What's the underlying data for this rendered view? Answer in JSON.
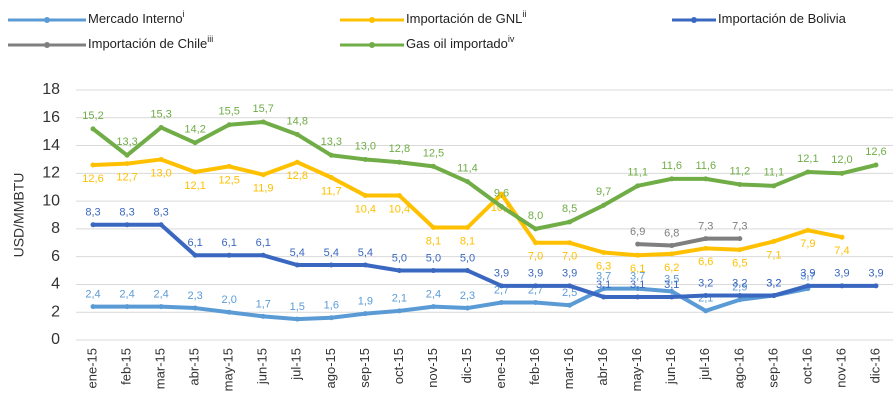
{
  "chart_data": {
    "type": "line",
    "y_label": "USD/MMBTU",
    "categories": [
      "ene-15",
      "feb-15",
      "mar-15",
      "abr-15",
      "may-15",
      "jun-15",
      "jul-15",
      "ago-15",
      "sep-15",
      "oct-15",
      "nov-15",
      "dic-15",
      "ene-16",
      "feb-16",
      "mar-16",
      "abr-16",
      "may-16",
      "jun-16",
      "jul-16",
      "ago-16",
      "sep-16",
      "oct-16",
      "nov-16",
      "dic-16"
    ],
    "ylim": [
      0,
      18
    ],
    "yticks": [
      0,
      2,
      4,
      6,
      8,
      10,
      12,
      14,
      16,
      18
    ],
    "grid": true,
    "series": [
      {
        "name": "Mercado Interno",
        "name_sup": "i",
        "color": "#5b9bd5",
        "values": [
          2.4,
          2.4,
          2.4,
          2.3,
          2.0,
          1.7,
          1.5,
          1.6,
          1.9,
          2.1,
          2.4,
          2.3,
          2.7,
          2.7,
          2.5,
          3.7,
          3.7,
          3.5,
          2.1,
          2.9,
          3.2,
          3.7,
          null,
          null
        ],
        "value_labels": [
          "2,4",
          "2,4",
          "2,4",
          "2,3",
          "2,0",
          "1,7",
          "1,5",
          "1,6",
          "1,9",
          "2,1",
          "2,4",
          "2,3",
          "2,7",
          "2,7",
          "2,5",
          "3,7",
          "3,7",
          "3,5",
          "2,1",
          "2,9",
          "3,2",
          "3,7",
          null,
          null
        ]
      },
      {
        "name": "Importación de GNL",
        "name_sup": "ii",
        "color": "#ffc000",
        "values": [
          12.6,
          12.7,
          13.0,
          12.1,
          12.5,
          11.9,
          12.8,
          11.7,
          10.4,
          10.4,
          8.1,
          8.1,
          10.5,
          7.0,
          7.0,
          6.3,
          6.1,
          6.2,
          6.6,
          6.5,
          7.1,
          7.9,
          7.4,
          null
        ],
        "value_labels": [
          "12,6",
          "12,7",
          "13,0",
          "12,1",
          "12,5",
          "11,9",
          "12,8",
          "11,7",
          "10,4",
          "10,4",
          "8,1",
          "8,1",
          "10,5",
          "7,0",
          "7,0",
          "6,3",
          "6,1",
          "6,2",
          "6,6",
          "6,5",
          "7,1",
          "7,9",
          "7,4",
          null
        ]
      },
      {
        "name": "Importación de Bolivia",
        "color": "#3a68c0",
        "values": [
          8.3,
          8.3,
          8.3,
          6.1,
          6.1,
          6.1,
          5.4,
          5.4,
          5.4,
          5.0,
          5.0,
          5.0,
          3.9,
          3.9,
          3.9,
          3.1,
          3.1,
          3.1,
          3.2,
          3.2,
          3.2,
          3.9,
          3.9,
          3.9
        ],
        "value_labels": [
          "8,3",
          "8,3",
          "8,3",
          "6,1",
          "6,1",
          "6,1",
          "5,4",
          "5,4",
          "5,4",
          "5,0",
          "5,0",
          "5,0",
          "3,9",
          "3,9",
          "3,9",
          "3,1",
          "3,1",
          "3,1",
          "3,2",
          "3,2",
          "3,2",
          "3,9",
          "3,9",
          "3,9"
        ]
      },
      {
        "name": "Importación de Chile",
        "name_sup": "iii",
        "color": "#7f7f7f",
        "values": [
          null,
          null,
          null,
          null,
          null,
          null,
          null,
          null,
          null,
          null,
          null,
          null,
          null,
          null,
          null,
          null,
          6.9,
          6.8,
          7.3,
          7.3,
          null,
          null,
          null,
          null
        ],
        "value_labels": [
          null,
          null,
          null,
          null,
          null,
          null,
          null,
          null,
          null,
          null,
          null,
          null,
          null,
          null,
          null,
          null,
          "6,9",
          "6,8",
          "7,3",
          "7,3",
          null,
          null,
          null,
          null
        ]
      },
      {
        "name": "Gas oil importado",
        "name_sup": "iv",
        "color": "#70ad47",
        "values": [
          15.2,
          13.3,
          15.3,
          14.2,
          15.5,
          15.7,
          14.8,
          13.3,
          13.0,
          12.8,
          12.5,
          11.4,
          9.6,
          8.0,
          8.5,
          9.7,
          11.1,
          11.6,
          11.6,
          11.2,
          11.1,
          12.1,
          12.0,
          12.6
        ],
        "value_labels": [
          "15,2",
          "13,3",
          "15,3",
          "14,2",
          "15,5",
          "15,7",
          "14,8",
          "13,3",
          "13,0",
          "12,8",
          "12,5",
          "11,4",
          "9,6",
          "8,0",
          "8,5",
          "9,7",
          "11,1",
          "11,6",
          "11,6",
          "11,2",
          "11,1",
          "12,1",
          "12,0",
          "12,6"
        ]
      }
    ]
  }
}
